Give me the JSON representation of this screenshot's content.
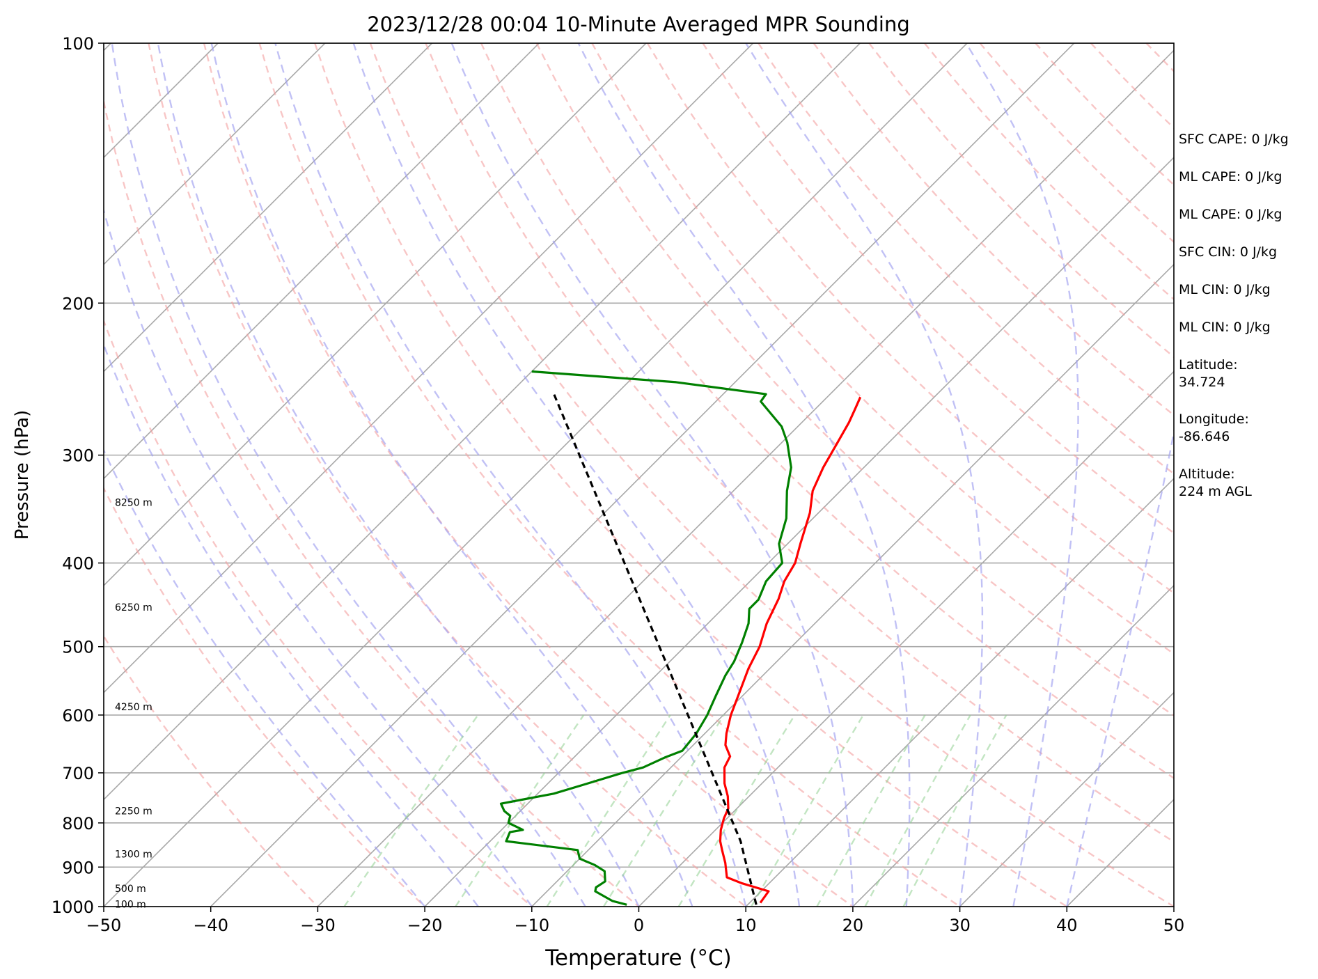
{
  "chart_data": {
    "type": "line",
    "title": "2023/12/28 00:04 10-Minute Averaged MPR Sounding",
    "xlabel": "Temperature (°C)",
    "ylabel": "Pressure (hPa)",
    "xlim": [
      -50,
      50
    ],
    "ylim": [
      1000,
      100
    ],
    "y_scale": "log",
    "skew": true,
    "x_ticks": [
      "−50",
      "−40",
      "−30",
      "−20",
      "−10",
      "0",
      "10",
      "20",
      "30",
      "40",
      "50"
    ],
    "x_tick_values": [
      -50,
      -40,
      -30,
      -20,
      -10,
      0,
      10,
      20,
      30,
      40,
      50
    ],
    "y_ticks": [
      "100",
      "200",
      "300",
      "400",
      "500",
      "600",
      "700",
      "800",
      "900",
      "1000"
    ],
    "y_tick_values": [
      100,
      200,
      300,
      400,
      500,
      600,
      700,
      800,
      900,
      1000
    ],
    "grid": true,
    "height_labels": [
      {
        "text": "8250 m",
        "p": 341
      },
      {
        "text": "6250 m",
        "p": 451
      },
      {
        "text": "4250 m",
        "p": 588
      },
      {
        "text": "2250 m",
        "p": 776
      },
      {
        "text": "1300 m",
        "p": 871
      },
      {
        "text": "500 m",
        "p": 955
      },
      {
        "text": "100 m",
        "p": 995
      }
    ],
    "series": [
      {
        "color": "#ff0000",
        "points": [
          [
            11.0,
            990
          ],
          [
            10.7,
            960
          ],
          [
            7.5,
            940
          ],
          [
            5.5,
            925
          ],
          [
            4.0,
            890
          ],
          [
            2.5,
            860
          ],
          [
            1.5,
            840
          ],
          [
            0.5,
            815
          ],
          [
            -0.3,
            790
          ],
          [
            -0.8,
            770
          ],
          [
            -2.0,
            745
          ],
          [
            -3.5,
            720
          ],
          [
            -5.0,
            690
          ],
          [
            -5.5,
            670
          ],
          [
            -7.0,
            650
          ],
          [
            -8.0,
            630
          ],
          [
            -9.3,
            600
          ],
          [
            -10.8,
            560
          ],
          [
            -12.0,
            530
          ],
          [
            -13.0,
            500
          ],
          [
            -14.5,
            470
          ],
          [
            -15.7,
            440
          ],
          [
            -16.8,
            420
          ],
          [
            -17.5,
            400
          ],
          [
            -18.8,
            380
          ],
          [
            -20.8,
            350
          ],
          [
            -22.6,
            330
          ],
          [
            -23.8,
            310
          ],
          [
            -24.8,
            290
          ],
          [
            -25.6,
            275
          ],
          [
            -26.3,
            265
          ],
          [
            -26.9,
            257
          ]
        ]
      },
      {
        "color": "#008000",
        "points": [
          [
            -1.3,
            995
          ],
          [
            -3.0,
            985
          ],
          [
            -5.5,
            960
          ],
          [
            -5.8,
            950
          ],
          [
            -5.5,
            935
          ],
          [
            -6.5,
            910
          ],
          [
            -8.0,
            895
          ],
          [
            -10.0,
            880
          ],
          [
            -11.0,
            860
          ],
          [
            -18.5,
            840
          ],
          [
            -19.0,
            820
          ],
          [
            -18.0,
            815
          ],
          [
            -20.0,
            800
          ],
          [
            -20.5,
            785
          ],
          [
            -21.5,
            775
          ],
          [
            -22.5,
            760
          ],
          [
            -18.5,
            740
          ],
          [
            -16.5,
            722
          ],
          [
            -14.0,
            700
          ],
          [
            -12.6,
            690
          ],
          [
            -11.5,
            672
          ],
          [
            -10.5,
            660
          ],
          [
            -10.8,
            630
          ],
          [
            -11.5,
            600
          ],
          [
            -12.5,
            570
          ],
          [
            -13.5,
            540
          ],
          [
            -14.0,
            520
          ],
          [
            -15.0,
            495
          ],
          [
            -16.2,
            470
          ],
          [
            -17.5,
            452
          ],
          [
            -17.5,
            441
          ],
          [
            -18.5,
            420
          ],
          [
            -18.7,
            400
          ],
          [
            -20.8,
            380
          ],
          [
            -22.5,
            355
          ],
          [
            -25.0,
            330
          ],
          [
            -26.8,
            310
          ],
          [
            -29.5,
            290
          ],
          [
            -31.5,
            278
          ],
          [
            -35.8,
            260
          ],
          [
            -36.0,
            255
          ],
          [
            -45.5,
            247
          ],
          [
            -60.0,
            240
          ]
        ]
      },
      {
        "color": "#000000",
        "dashed": true,
        "points": [
          [
            10.8,
            995
          ],
          [
            3.4,
            840
          ],
          [
            -56.0,
            254
          ]
        ]
      }
    ],
    "info_lines": [
      "SFC CAPE: 0 J/kg",
      "ML CAPE: 0 J/kg",
      "ML CAPE: 0 J/kg",
      "SFC CIN: 0 J/kg",
      "ML CIN: 0 J/kg",
      "ML CIN: 0 J/kg",
      "Latitude:\n34.724",
      "Longitude:\n-86.646",
      "Altitude:\n224 m AGL"
    ]
  }
}
